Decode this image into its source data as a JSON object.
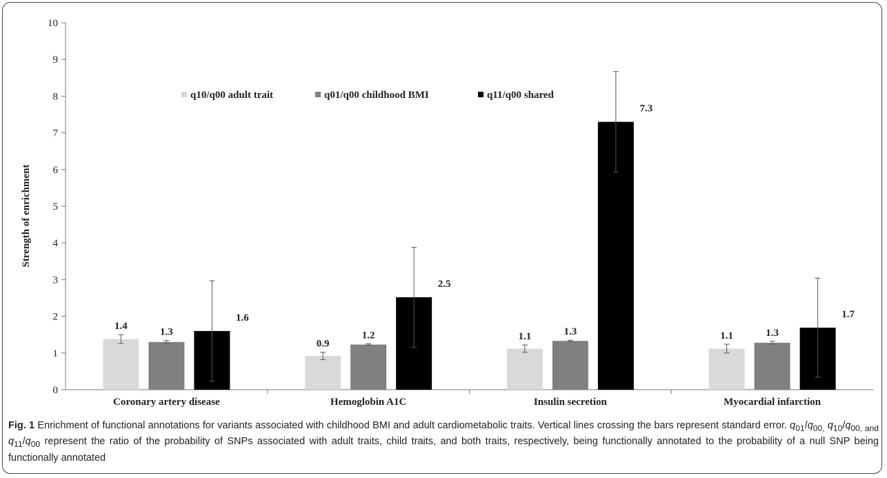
{
  "chart_data": {
    "type": "bar",
    "ylabel": "Strength of enrichment",
    "xlabel": "",
    "ylim": [
      0,
      10
    ],
    "yticks": [
      "0",
      "1",
      "2",
      "3",
      "4",
      "5",
      "6",
      "7",
      "8",
      "9",
      "10"
    ],
    "legend_position": "top-center",
    "categories": [
      "Coronary artery disease",
      "Hemoglobin A1C",
      "Insulin secretion",
      "Myocardial infarction"
    ],
    "series": [
      {
        "name": "q10/q00 adult trait",
        "color": "#d9d9d9",
        "values": [
          1.38,
          0.92,
          1.12,
          1.12
        ],
        "labels": [
          "1.4",
          "0.9",
          "1.1",
          "1.1"
        ],
        "errors": [
          0.12,
          0.1,
          0.1,
          0.12
        ]
      },
      {
        "name": "q01/q00 childhood BMI",
        "color": "#808080",
        "values": [
          1.3,
          1.23,
          1.33,
          1.28
        ],
        "labels": [
          "1.3",
          "1.2",
          "1.3",
          "1.3"
        ],
        "errors": [
          0.04,
          0.02,
          0.02,
          0.04
        ]
      },
      {
        "name": "q11/q00 shared",
        "color": "#000000",
        "values": [
          1.6,
          2.52,
          7.3,
          1.69
        ],
        "labels": [
          "1.6",
          "2.5",
          "7.3",
          "1.7"
        ],
        "errors": [
          1.37,
          1.36,
          1.37,
          1.35
        ]
      }
    ]
  },
  "caption": {
    "label": "Fig. 1",
    "part1": " Enrichment of functional annotations for variants associated with childhood BMI and adult cardiometabolic traits. Vertical lines crossing the bars represent standard error. ",
    "q01": "q",
    "q01_sub": "01",
    "slash1": "/",
    "q00a": "q",
    "q00a_sub": "00,",
    "space1": " ",
    "q10": "q",
    "q10_sub": "10",
    "slash2": "/",
    "q00b": "q",
    "q00b_sub": "00, and",
    "space2": " ",
    "q11": "q",
    "q11_sub": "11",
    "slash3": "/",
    "q00c": "q",
    "q00c_sub": "00",
    "part2": " represent the ratio of the probability of SNPs associated with adult traits, child traits, and both traits, respectively, being functionally annotated to the probability of a null SNP being functionally annotated"
  }
}
